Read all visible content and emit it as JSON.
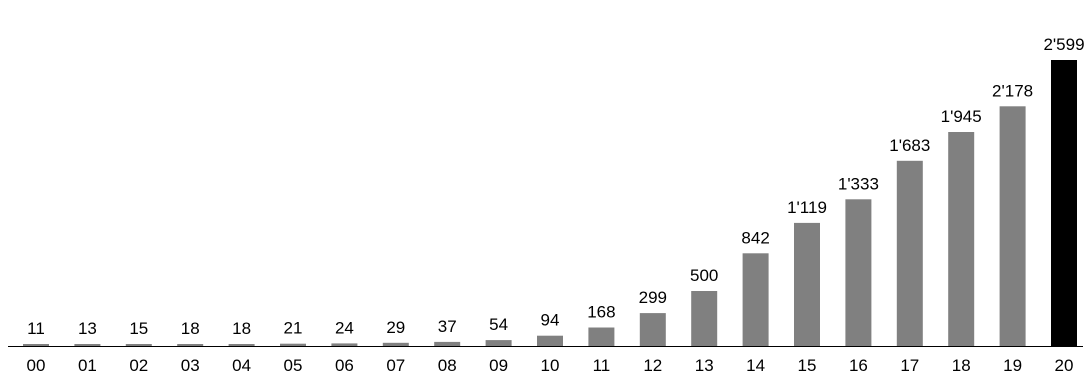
{
  "chart_data": {
    "type": "bar",
    "categories": [
      "00",
      "01",
      "02",
      "03",
      "04",
      "05",
      "06",
      "07",
      "08",
      "09",
      "10",
      "11",
      "12",
      "13",
      "14",
      "15",
      "16",
      "17",
      "18",
      "19",
      "20"
    ],
    "values": [
      11,
      13,
      15,
      18,
      18,
      21,
      24,
      29,
      37,
      54,
      94,
      168,
      299,
      500,
      842,
      1119,
      1333,
      1683,
      1945,
      2178,
      2599
    ],
    "value_labels": [
      "11",
      "13",
      "15",
      "18",
      "18",
      "21",
      "24",
      "29",
      "37",
      "54",
      "94",
      "168",
      "299",
      "500",
      "842",
      "1'119",
      "1'333",
      "1'683",
      "1'945",
      "2'178",
      "2'599"
    ],
    "highlight_index": 20,
    "colors": {
      "bar": "#808080",
      "highlight": "#000000",
      "axis": "#000000"
    },
    "title": "",
    "xlabel": "",
    "ylabel": "",
    "ylim": [
      0,
      2599
    ],
    "grid": false,
    "legend": "none"
  }
}
